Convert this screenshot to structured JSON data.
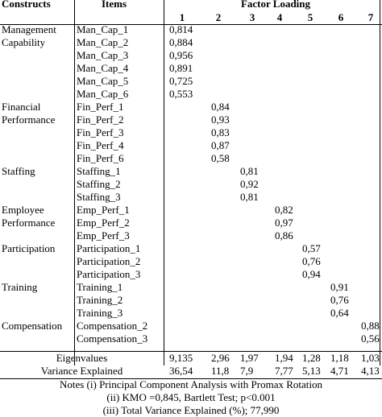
{
  "header": {
    "constructs": "Constructs",
    "items": "Items",
    "factor_loading": "Factor Loading",
    "factors": [
      "1",
      "2",
      "3",
      "4",
      "5",
      "6",
      "7"
    ]
  },
  "constructs": [
    {
      "label_lines": [
        "Management",
        "Capability"
      ],
      "factor": 1,
      "items": [
        {
          "name": "Man_Cap_1",
          "loading": "0,814"
        },
        {
          "name": "Man_Cap_2",
          "loading": "0,884"
        },
        {
          "name": "Man_Cap_3",
          "loading": "0,956"
        },
        {
          "name": "Man_Cap_4",
          "loading": "0,891"
        },
        {
          "name": "Man_Cap_5",
          "loading": "0,725"
        },
        {
          "name": "Man_Cap_6",
          "loading": "0,553"
        }
      ]
    },
    {
      "label_lines": [
        "Financial",
        "Performance"
      ],
      "factor": 2,
      "items": [
        {
          "name": "Fin_Perf_1",
          "loading": "0,84"
        },
        {
          "name": "Fin_Perf_2",
          "loading": "0,93"
        },
        {
          "name": "Fin_Perf_3",
          "loading": "0,83"
        },
        {
          "name": "Fin_Perf_4",
          "loading": "0,87"
        },
        {
          "name": "Fin_Perf_6",
          "loading": "0,58"
        }
      ]
    },
    {
      "label_lines": [
        "Staffing"
      ],
      "factor": 3,
      "items": [
        {
          "name": "Staffing_1",
          "loading": "0,81"
        },
        {
          "name": "Staffing_2",
          "loading": "0,92"
        },
        {
          "name": "Staffing_3",
          "loading": "0,81"
        }
      ]
    },
    {
      "label_lines": [
        "Employee",
        "Performance"
      ],
      "factor": 4,
      "items": [
        {
          "name": "Emp_Perf_1",
          "loading": "0,82"
        },
        {
          "name": "Emp_Perf_2",
          "loading": "0,97"
        },
        {
          "name": "Emp_Perf_3",
          "loading": "0,86"
        }
      ]
    },
    {
      "label_lines": [
        "Participation"
      ],
      "factor": 5,
      "items": [
        {
          "name": "Participation_1",
          "loading": "0,57"
        },
        {
          "name": "Participation_2",
          "loading": "0,76"
        },
        {
          "name": "Participation_3",
          "loading": "0,94"
        }
      ]
    },
    {
      "label_lines": [
        "Training"
      ],
      "factor": 6,
      "items": [
        {
          "name": "Training_1",
          "loading": "0,91"
        },
        {
          "name": "Training_2",
          "loading": "0,76"
        },
        {
          "name": "Training_3",
          "loading": "0,64"
        }
      ]
    },
    {
      "label_lines": [
        "Compensation"
      ],
      "factor": 7,
      "items": [
        {
          "name": "Compensation_2",
          "loading": "0,88"
        },
        {
          "name": "Compensation_3",
          "loading": "0,56"
        }
      ]
    }
  ],
  "summary_rows": [
    {
      "label": "Eigenvalues",
      "values": [
        "9,135",
        "2,96",
        "1,97",
        "1,94",
        "1,28",
        "1,18",
        "1,03"
      ]
    },
    {
      "label": "Variance Explained",
      "values": [
        "36,54",
        "11,8",
        "7,9",
        "7,77",
        "5,13",
        "4,71",
        "4,13"
      ]
    }
  ],
  "notes": [
    "Notes (i) Principal Component Analysis with Promax Rotation",
    "(ii) KMO =0,845, Bartlett Test;  p<0.001",
    "(iii) Total Variance Explained (%);  77,990"
  ]
}
